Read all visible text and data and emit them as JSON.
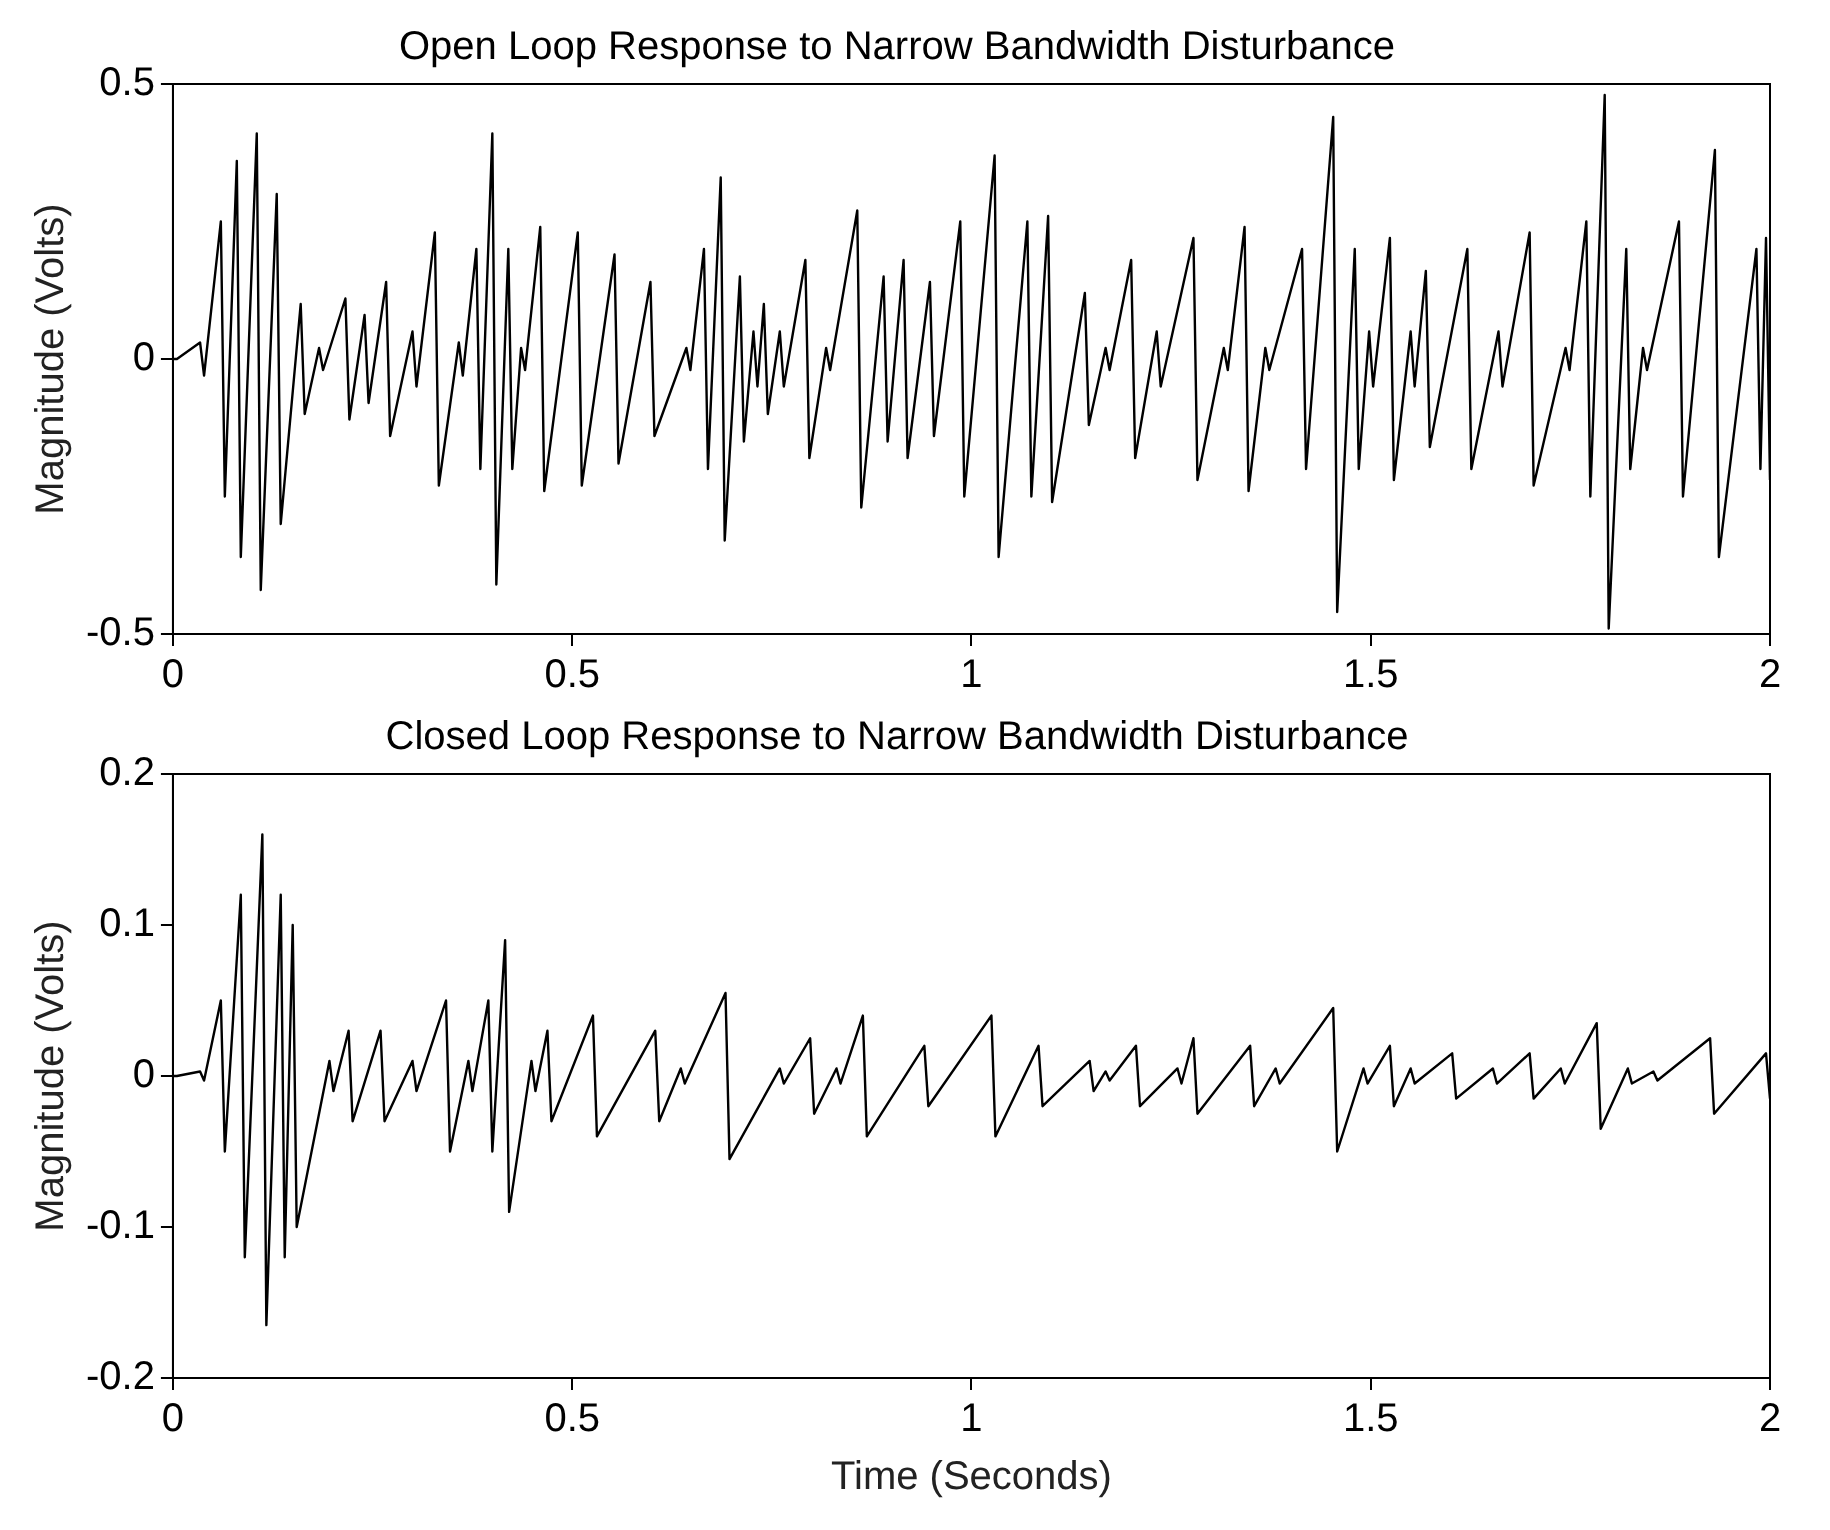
{
  "chart_data": [
    {
      "type": "line",
      "title": "Open Loop Response to Narrow Bandwidth Disturbance",
      "ylabel": "Magnitude (Volts)",
      "color": "#000000",
      "x": [
        0,
        0.005,
        0.034,
        0.039,
        0.06,
        0.065,
        0.08,
        0.085,
        0.105,
        0.11,
        0.13,
        0.135,
        0.16,
        0.165,
        0.183,
        0.188,
        0.216,
        0.221,
        0.24,
        0.245,
        0.267,
        0.272,
        0.3,
        0.305,
        0.328,
        0.333,
        0.358,
        0.363,
        0.38,
        0.385,
        0.4,
        0.405,
        0.42,
        0.425,
        0.436,
        0.441,
        0.46,
        0.465,
        0.507,
        0.512,
        0.553,
        0.558,
        0.598,
        0.603,
        0.643,
        0.648,
        0.665,
        0.67,
        0.686,
        0.691,
        0.71,
        0.715,
        0.727,
        0.732,
        0.74,
        0.745,
        0.76,
        0.765,
        0.792,
        0.797,
        0.818,
        0.823,
        0.857,
        0.862,
        0.89,
        0.895,
        0.915,
        0.92,
        0.948,
        0.953,
        0.986,
        0.991,
        1.029,
        1.034,
        1.07,
        1.075,
        1.096,
        1.101,
        1.142,
        1.147,
        1.168,
        1.173,
        1.2,
        1.205,
        1.232,
        1.237,
        1.278,
        1.283,
        1.316,
        1.321,
        1.342,
        1.347,
        1.368,
        1.373,
        1.414,
        1.419,
        1.453,
        1.458,
        1.48,
        1.485,
        1.498,
        1.503,
        1.524,
        1.529,
        1.55,
        1.555,
        1.569,
        1.574,
        1.621,
        1.626,
        1.66,
        1.665,
        1.699,
        1.704,
        1.744,
        1.749,
        1.77,
        1.775,
        1.793,
        1.798,
        1.82,
        1.825,
        1.841,
        1.846,
        1.886,
        1.891,
        1.931,
        1.936,
        1.983,
        1.988,
        1.995,
        2
      ],
      "values": [
        0,
        0,
        0.03,
        -0.03,
        0.25,
        -0.25,
        0.36,
        -0.36,
        0.41,
        -0.42,
        0.3,
        -0.3,
        0.1,
        -0.1,
        0.02,
        -0.02,
        0.11,
        -0.11,
        0.08,
        -0.08,
        0.14,
        -0.14,
        0.05,
        -0.05,
        0.23,
        -0.23,
        0.03,
        -0.03,
        0.2,
        -0.2,
        0.41,
        -0.41,
        0.2,
        -0.2,
        0.02,
        -0.02,
        0.24,
        -0.24,
        0.23,
        -0.23,
        0.19,
        -0.19,
        0.14,
        -0.14,
        0.02,
        -0.02,
        0.2,
        -0.2,
        0.33,
        -0.33,
        0.15,
        -0.15,
        0.05,
        -0.05,
        0.1,
        -0.1,
        0.05,
        -0.05,
        0.18,
        -0.18,
        0.02,
        -0.02,
        0.27,
        -0.27,
        0.15,
        -0.15,
        0.18,
        -0.18,
        0.14,
        -0.14,
        0.25,
        -0.25,
        0.37,
        -0.36,
        0.25,
        -0.25,
        0.26,
        -0.26,
        0.12,
        -0.12,
        0.02,
        -0.02,
        0.18,
        -0.18,
        0.05,
        -0.05,
        0.22,
        -0.22,
        0.02,
        -0.02,
        0.24,
        -0.24,
        0.02,
        -0.02,
        0.2,
        -0.2,
        0.44,
        -0.46,
        0.2,
        -0.2,
        0.05,
        -0.05,
        0.22,
        -0.22,
        0.05,
        -0.05,
        0.16,
        -0.16,
        0.2,
        -0.2,
        0.05,
        -0.05,
        0.23,
        -0.23,
        0.02,
        -0.02,
        0.25,
        -0.25,
        0.48,
        -0.49,
        0.2,
        -0.2,
        0.02,
        -0.02,
        0.25,
        -0.25,
        0.38,
        -0.36,
        0.2,
        -0.2,
        0.22,
        -0.22
      ],
      "xlim": [
        0,
        2
      ],
      "xticks": [
        0,
        0.5,
        1,
        1.5,
        2
      ],
      "ylim": [
        -0.5,
        0.5
      ],
      "yticks": [
        -0.5,
        0,
        0.5
      ]
    },
    {
      "type": "line",
      "title": "Closed Loop Response to Narrow Bandwidth Disturbance",
      "xlabel": "Time (Seconds)",
      "ylabel": "Magnitude (Volts)",
      "color": "#000000",
      "x": [
        0,
        0.005,
        0.034,
        0.039,
        0.06,
        0.065,
        0.085,
        0.09,
        0.112,
        0.117,
        0.135,
        0.14,
        0.15,
        0.155,
        0.196,
        0.201,
        0.22,
        0.225,
        0.26,
        0.265,
        0.3,
        0.305,
        0.342,
        0.347,
        0.37,
        0.375,
        0.395,
        0.4,
        0.416,
        0.421,
        0.449,
        0.454,
        0.469,
        0.474,
        0.526,
        0.531,
        0.604,
        0.609,
        0.636,
        0.641,
        0.692,
        0.697,
        0.76,
        0.765,
        0.798,
        0.803,
        0.831,
        0.836,
        0.864,
        0.869,
        0.941,
        0.946,
        1.025,
        1.03,
        1.084,
        1.089,
        1.148,
        1.153,
        1.168,
        1.173,
        1.206,
        1.211,
        1.258,
        1.263,
        1.278,
        1.283,
        1.349,
        1.354,
        1.381,
        1.386,
        1.453,
        1.458,
        1.491,
        1.496,
        1.524,
        1.529,
        1.55,
        1.555,
        1.602,
        1.607,
        1.653,
        1.658,
        1.699,
        1.704,
        1.738,
        1.743,
        1.783,
        1.788,
        1.822,
        1.827,
        1.854,
        1.859,
        1.925,
        1.93,
        1.995,
        2
      ],
      "values": [
        0,
        0,
        0.003,
        -0.003,
        0.05,
        -0.05,
        0.12,
        -0.12,
        0.16,
        -0.165,
        0.12,
        -0.12,
        0.1,
        -0.1,
        0.01,
        -0.01,
        0.03,
        -0.03,
        0.03,
        -0.03,
        0.01,
        -0.01,
        0.05,
        -0.05,
        0.01,
        -0.01,
        0.05,
        -0.05,
        0.09,
        -0.09,
        0.01,
        -0.01,
        0.03,
        -0.03,
        0.04,
        -0.04,
        0.03,
        -0.03,
        0.005,
        -0.005,
        0.055,
        -0.055,
        0.005,
        -0.005,
        0.025,
        -0.025,
        0.005,
        -0.005,
        0.04,
        -0.04,
        0.02,
        -0.02,
        0.04,
        -0.04,
        0.02,
        -0.02,
        0.01,
        -0.01,
        0.003,
        -0.003,
        0.02,
        -0.02,
        0.005,
        -0.005,
        0.025,
        -0.025,
        0.02,
        -0.02,
        0.005,
        -0.005,
        0.045,
        -0.05,
        0.005,
        -0.005,
        0.02,
        -0.02,
        0.005,
        -0.005,
        0.015,
        -0.015,
        0.005,
        -0.005,
        0.015,
        -0.015,
        0.005,
        -0.005,
        0.035,
        -0.035,
        0.005,
        -0.005,
        0.003,
        -0.003,
        0.025,
        -0.025,
        0.015,
        -0.015
      ],
      "xlim": [
        0,
        2
      ],
      "xticks": [
        0,
        0.5,
        1,
        1.5,
        2
      ],
      "ylim": [
        -0.2,
        0.2
      ],
      "yticks": [
        -0.2,
        -0.1,
        0,
        0.1,
        0.2
      ]
    }
  ]
}
